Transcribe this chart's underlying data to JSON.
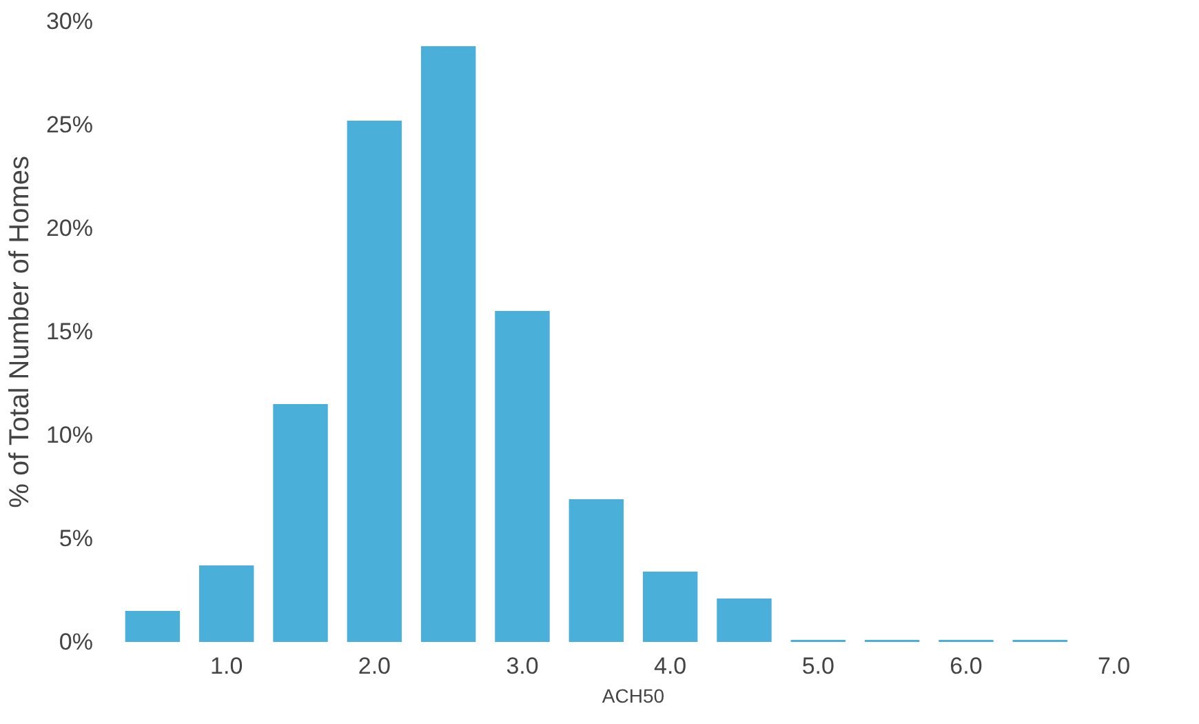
{
  "chart_data": {
    "type": "bar",
    "xlabel": "ACH50",
    "ylabel": "% of Total Number of Homes",
    "categories": [
      null,
      "1.0",
      null,
      "2.0",
      null,
      "3.0",
      null,
      "4.0",
      null,
      "5.0",
      null,
      "6.0",
      null,
      "7.0"
    ],
    "values": [
      1.5,
      3.7,
      11.5,
      25.2,
      28.8,
      16.0,
      6.9,
      3.4,
      2.1,
      0.1,
      0.1,
      0.1,
      0.1,
      null
    ],
    "color": "#4aafd9",
    "ylim": [
      0,
      30
    ],
    "yticks": [
      {
        "value": 0,
        "label": "0%"
      },
      {
        "value": 5,
        "label": "5%"
      },
      {
        "value": 10,
        "label": "10%"
      },
      {
        "value": 15,
        "label": "15%"
      },
      {
        "value": 20,
        "label": "20%"
      },
      {
        "value": 25,
        "label": "25%"
      },
      {
        "value": 30,
        "label": "30%"
      }
    ],
    "grid": false
  }
}
